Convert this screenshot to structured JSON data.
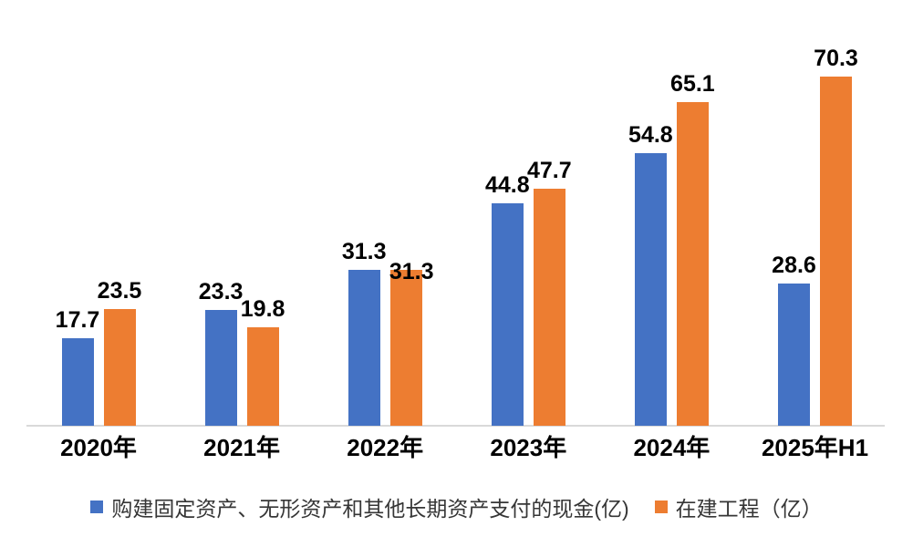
{
  "chart_data": {
    "type": "bar",
    "categories": [
      "2020年",
      "2021年",
      "2022年",
      "2023年",
      "2024年",
      "2025年H1"
    ],
    "series": [
      {
        "name": "购建固定资产、无形资产和其他长期资产支付的现金(亿)",
        "color": "#4472C4",
        "values": [
          17.7,
          23.3,
          31.3,
          44.8,
          54.8,
          28.6
        ]
      },
      {
        "name": "在建工程（亿）",
        "color": "#ED7D31",
        "values": [
          23.5,
          19.8,
          31.3,
          47.7,
          65.1,
          70.3
        ]
      }
    ],
    "title": "",
    "xlabel": "",
    "ylabel": "",
    "ylim": [
      0,
      80
    ],
    "grid": false,
    "legend_position": "bottom",
    "data_labels": true,
    "label_decimals": 1
  },
  "colors": {
    "background": "#FFFFFF",
    "axis_line": "#D9D9D9",
    "data_label_text": "#000000",
    "category_label_text": "#000000",
    "legend_text": "#363636"
  }
}
